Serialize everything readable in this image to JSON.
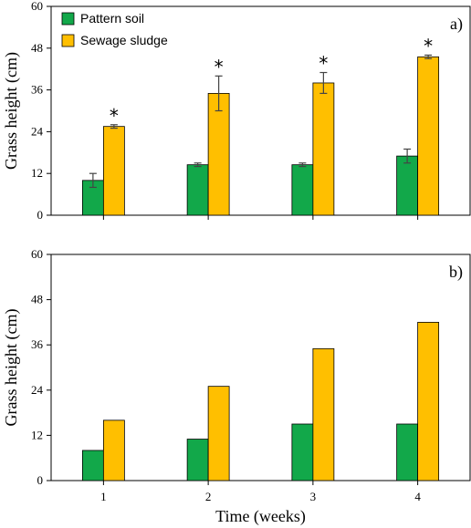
{
  "colors": {
    "pattern_soil": "#12a84a",
    "sewage_sludge": "#ffbf00",
    "axis": "#000000",
    "error_bar": "#444444"
  },
  "legend": {
    "items": [
      {
        "label": "Pattern soil",
        "color": "#12a84a"
      },
      {
        "label": "Sewage sludge",
        "color": "#ffbf00"
      }
    ]
  },
  "chart_data": [
    {
      "type": "bar",
      "panel_label": "a)",
      "categories": [
        "1",
        "2",
        "3",
        "4"
      ],
      "series": [
        {
          "name": "Pattern soil",
          "values": [
            10,
            14.5,
            14.5,
            17
          ],
          "errors": [
            2,
            0.5,
            0.5,
            2
          ]
        },
        {
          "name": "Sewage sludge",
          "values": [
            25.5,
            35,
            38,
            45.5
          ],
          "errors": [
            0.5,
            5,
            3,
            0.5
          ]
        }
      ],
      "significance": [
        "*",
        "*",
        "*",
        "*"
      ],
      "ylabel": "Grass height (cm)",
      "xlabel": "",
      "ylim": [
        0,
        60
      ],
      "yticks": [
        0,
        12,
        24,
        36,
        48,
        60
      ],
      "legend_position": "top-left"
    },
    {
      "type": "bar",
      "panel_label": "b)",
      "categories": [
        "1",
        "2",
        "3",
        "4"
      ],
      "series": [
        {
          "name": "Pattern soil",
          "values": [
            8,
            11,
            15,
            15
          ]
        },
        {
          "name": "Sewage sludge",
          "values": [
            16,
            25,
            35,
            42
          ]
        }
      ],
      "ylabel": "Grass height (cm)",
      "xlabel": "Time (weeks)",
      "ylim": [
        0,
        60
      ],
      "yticks": [
        0,
        12,
        24,
        36,
        48,
        60
      ]
    }
  ]
}
